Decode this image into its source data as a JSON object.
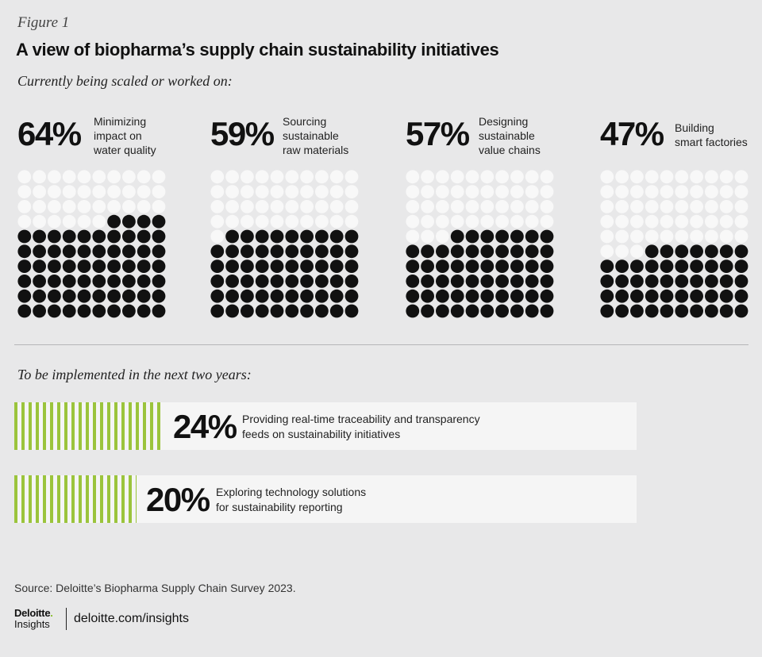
{
  "figure_label": "Figure 1",
  "title": "A view of biopharma’s supply chain sustainability initiatives",
  "section1_label": "Currently being scaled or worked on:",
  "section2_label": "To be implemented in the next two years:",
  "colors": {
    "background": "#e8e8e9",
    "filled_dot": "#111111",
    "empty_dot": "#f8f8f8",
    "bar_accent": "#9bc43c",
    "panel": "#f5f5f5"
  },
  "chart_data": [
    {
      "type": "waffle",
      "grid": "10 columns x 10 rows of dots, filled from bottom",
      "items": [
        {
          "pct_label": "64%",
          "value": 64,
          "desc_lines": [
            "Minimizing",
            "impact on",
            "water quality"
          ]
        },
        {
          "pct_label": "59%",
          "value": 59,
          "desc_lines": [
            "Sourcing",
            "sustainable",
            "raw materials"
          ]
        },
        {
          "pct_label": "57%",
          "value": 57,
          "desc_lines": [
            "Designing",
            "sustainable",
            "value chains"
          ]
        },
        {
          "pct_label": "47%",
          "value": 47,
          "desc_lines": [
            "Building",
            "smart factories"
          ]
        }
      ]
    },
    {
      "type": "bar",
      "items": [
        {
          "pct_label": "24%",
          "value": 24,
          "desc_lines": [
            "Providing real-time traceability and transparency",
            "feeds on sustainability initiatives"
          ]
        },
        {
          "pct_label": "20%",
          "value": 20,
          "desc_lines": [
            "Exploring technology solutions",
            "for sustainability reporting"
          ]
        }
      ]
    }
  ],
  "source": "Source: Deloitte’s Biopharma Supply Chain Survey 2023.",
  "logo": {
    "brand": "Deloitte",
    "brand_dot": ".",
    "sub": "Insights"
  },
  "site": "deloitte.com/insights"
}
